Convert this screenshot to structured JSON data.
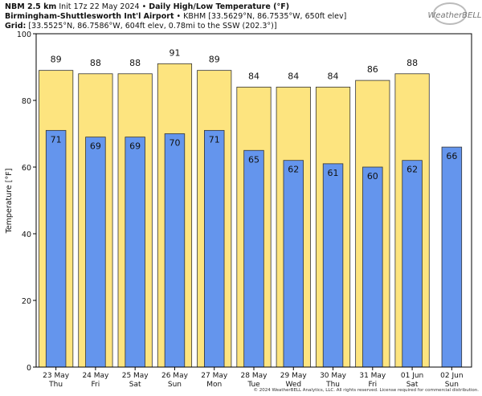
{
  "chart_data": {
    "type": "bar",
    "model": "NBM 2.5 km",
    "init": "Init 17z 22 May 2024",
    "separator": "•",
    "title": "Daily High/Low Temperature (°F)",
    "station": "Birmingham-Shuttlesworth Int'l Airport",
    "station_info": "• KBHM [33.5629°N, 86.7535°W, 650ft elev]",
    "grid_label": "Grid:",
    "grid_info": "[33.5525°N, 86.7586°W, 604ft elev, 0.78mi to the SSW (202.3°)]",
    "logo": "WeatherBELL",
    "footer": "© 2024 WeatherBELL Analytics, LLC. All rights reserved. License required for commercial distribution.",
    "ylabel": "Temperature [°F]",
    "categories": [
      "23 May",
      "24 May",
      "25 May",
      "26 May",
      "27 May",
      "28 May",
      "29 May",
      "30 May",
      "31 May",
      "01 Jun",
      "02 Jun"
    ],
    "weekdays": [
      "Thu",
      "Fri",
      "Sat",
      "Sun",
      "Mon",
      "Tue",
      "Wed",
      "Thu",
      "Fri",
      "Sat",
      "Sun"
    ],
    "series": [
      {
        "name": "High",
        "color": "#fde47f",
        "values": [
          89,
          88,
          88,
          91,
          89,
          84,
          84,
          84,
          86,
          88,
          null
        ]
      },
      {
        "name": "Low",
        "color": "#6495ed",
        "values": [
          71,
          69,
          69,
          70,
          71,
          65,
          62,
          61,
          60,
          62,
          66
        ]
      }
    ],
    "ylim": [
      0,
      100
    ],
    "yticks": [
      0,
      20,
      40,
      60,
      80,
      100
    ],
    "grid": false
  }
}
